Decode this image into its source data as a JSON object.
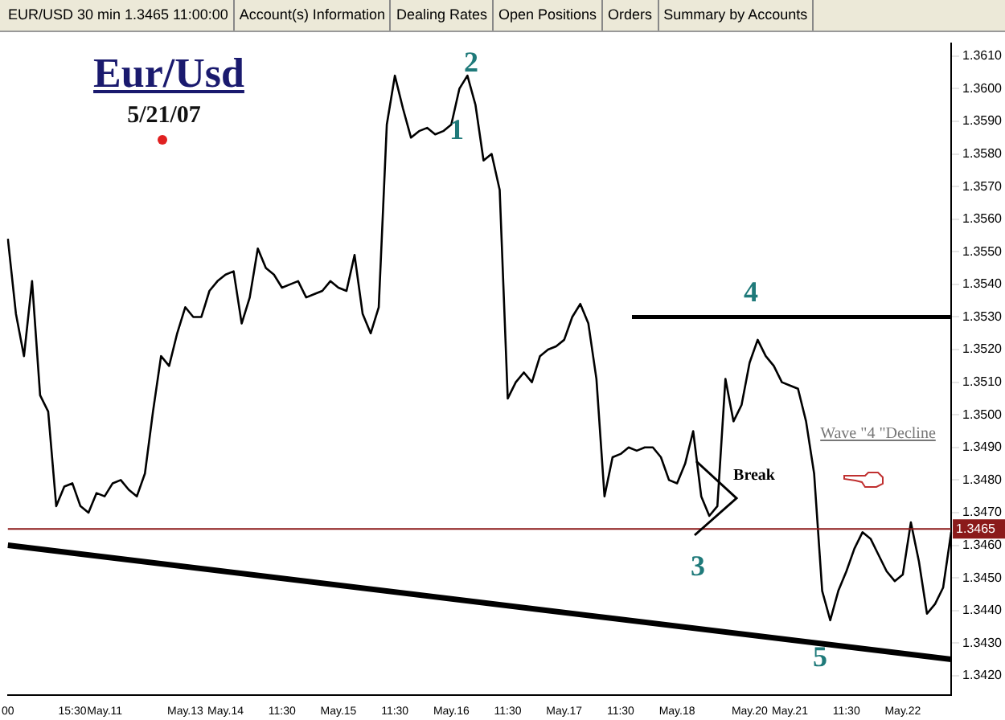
{
  "chart_data": {
    "type": "line",
    "title": "Eur/Usd",
    "subtitle": "5/21/07",
    "annotations": [
      "EUR/USD 30 min 1.3465 11:00:00",
      "Account(s) Information",
      "Dealing Rates",
      "Open Positions",
      "Orders",
      "Summary by Accounts",
      "1",
      "2",
      {
        "text": "3",
        "y": 1.3465
      },
      "4",
      "5",
      "Break",
      "Wave \"4 \"Decline"
    ],
    "categories": [
      "00",
      null,
      null,
      null,
      null,
      null,
      null,
      null,
      "15:30",
      null,
      null,
      null,
      "May.11",
      null,
      null,
      null,
      null,
      null,
      null,
      null,
      null,
      null,
      "May.13",
      null,
      null,
      null,
      null,
      "May.14",
      null,
      null,
      null,
      null,
      null,
      null,
      "11:30",
      null,
      null,
      null,
      null,
      null,
      null,
      "May.15",
      null,
      null,
      null,
      null,
      null,
      null,
      "11:30",
      null,
      null,
      null,
      null,
      null,
      null,
      "May.16",
      null,
      null,
      null,
      null,
      null,
      null,
      "11:30",
      null,
      null,
      null,
      null,
      null,
      null,
      "May.17",
      null,
      null,
      null,
      null,
      null,
      null,
      "11:30",
      null,
      null,
      null,
      null,
      null,
      null,
      "May.18",
      null,
      null,
      null,
      null,
      null,
      null,
      null,
      null,
      "May.20",
      null,
      null,
      null,
      null,
      "May.21",
      null,
      null,
      null,
      null,
      null,
      null,
      "11:30",
      null,
      null,
      null,
      null,
      null,
      null,
      "May.22",
      null,
      null,
      null,
      null,
      null,
      null
    ],
    "series": [
      {
        "color": "#000000",
        "values": [
          1.3554,
          1.3531,
          1.3518,
          1.3541,
          1.3506,
          1.3501,
          1.3472,
          1.3478,
          1.3479,
          1.3472,
          1.347,
          1.3476,
          1.3475,
          1.3479,
          1.348,
          1.3477,
          1.3475,
          1.3482,
          1.3501,
          1.3518,
          1.3515,
          1.3525,
          1.3533,
          1.353,
          1.353,
          1.3538,
          1.3541,
          1.3543,
          1.3544,
          1.3528,
          1.3536,
          1.3551,
          1.3545,
          1.3543,
          1.3539,
          1.354,
          1.3541,
          1.3536,
          1.3537,
          1.3538,
          1.3541,
          1.3539,
          1.3538,
          1.3549,
          1.3531,
          1.3525,
          1.3533,
          1.3589,
          1.3604,
          1.3594,
          1.3585,
          1.3587,
          1.3588,
          1.3586,
          1.3587,
          1.3589,
          1.36,
          1.3604,
          1.3595,
          1.3578,
          1.358,
          1.3569,
          1.3505,
          1.351,
          1.3513,
          1.351,
          1.3518,
          1.352,
          1.3521,
          1.3523,
          1.353,
          1.3534,
          1.3528,
          1.3511,
          1.3475,
          1.3487,
          1.3488,
          1.349,
          1.3489,
          1.349,
          1.349,
          1.3487,
          1.348,
          1.3479,
          1.3485,
          1.3495,
          1.3475,
          1.3469,
          1.3472,
          1.3511,
          1.3498,
          1.3503,
          1.3516,
          1.3523,
          1.3518,
          1.3515,
          1.351,
          1.3509,
          1.3508,
          1.3498,
          1.3482,
          1.3446,
          1.3437,
          1.3446,
          1.3452,
          1.3459,
          1.3464,
          1.3462,
          1.3457,
          1.3452,
          1.3449,
          1.3451,
          1.3467,
          1.3455,
          1.3439,
          1.3442,
          1.3447,
          1.3464
        ]
      },
      {
        "type": "line",
        "color": "#000000",
        "values": [
          1.346,
          null,
          null,
          null,
          null,
          null,
          null,
          null,
          null,
          null,
          null,
          null,
          null,
          null,
          null,
          null,
          null,
          null,
          null,
          null,
          null,
          null,
          null,
          null,
          null,
          null,
          null,
          null,
          null,
          null,
          null,
          null,
          null,
          null,
          null,
          null,
          null,
          null,
          null,
          null,
          null,
          null,
          null,
          null,
          null,
          null,
          null,
          null,
          null,
          null,
          null,
          null,
          null,
          null,
          null,
          null,
          null,
          null,
          null,
          null,
          null,
          null,
          null,
          null,
          null,
          null,
          null,
          null,
          null,
          null,
          null,
          null,
          null,
          null,
          null,
          null,
          null,
          null,
          null,
          null,
          null,
          null,
          null,
          null,
          null,
          null,
          null,
          null,
          null,
          null,
          null,
          null,
          null,
          null,
          null,
          null,
          null,
          null,
          null,
          null,
          null,
          null,
          null,
          null,
          null,
          null,
          null,
          null,
          null,
          null,
          null,
          null,
          null,
          null,
          null,
          null,
          null,
          1.3425
        ]
      }
    ],
    "ref_lines": [
      {
        "axis": "y",
        "value": 1.353,
        "color": "#000000"
      },
      {
        "axis": "y",
        "value": 1.3465,
        "label": "1.3465",
        "color": "#8b1a1a"
      }
    ],
    "ylim": [
      1.3414,
      1.3614
    ],
    "yticks": [
      {
        "value": 1.342,
        "label": "1.3420"
      },
      {
        "value": 1.343,
        "label": "1.3430"
      },
      {
        "value": 1.344,
        "label": "1.3440"
      },
      {
        "value": 1.345,
        "label": "1.3450"
      },
      {
        "value": 1.346,
        "label": "1.3460"
      },
      {
        "value": 1.347,
        "label": "1.3470"
      },
      {
        "value": 1.348,
        "label": "1.3480"
      },
      {
        "value": 1.349,
        "label": "1.3490"
      },
      {
        "value": 1.35,
        "label": "1.3500"
      },
      {
        "value": 1.351,
        "label": "1.3510"
      },
      {
        "value": 1.352,
        "label": "1.3520"
      },
      {
        "value": 1.353,
        "label": "1.3530"
      },
      {
        "value": 1.354,
        "label": "1.3540"
      },
      {
        "value": 1.355,
        "label": "1.3550"
      },
      {
        "value": 1.356,
        "label": "1.3560"
      },
      {
        "value": 1.357,
        "label": "1.3570"
      },
      {
        "value": 1.358,
        "label": "1.3580"
      },
      {
        "value": 1.359,
        "label": "1.3590"
      },
      {
        "value": 1.36,
        "label": "1.3600"
      },
      {
        "value": 1.361,
        "label": "1.3610"
      }
    ],
    "grid": false,
    "legend": false,
    "marker": "none",
    "line_style": "solid"
  }
}
